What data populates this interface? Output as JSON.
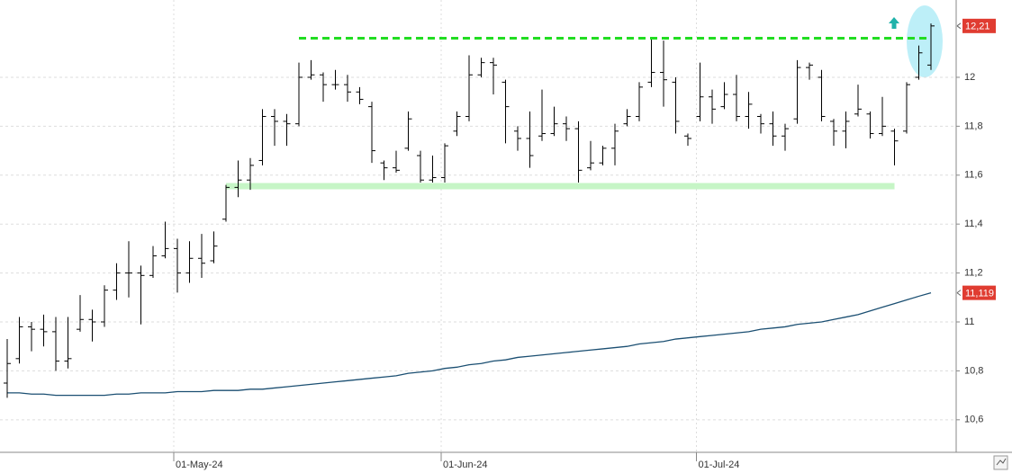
{
  "chart_data": {
    "type": "ohlc",
    "categories": [
      null,
      null,
      null,
      null,
      null,
      null,
      null,
      null,
      null,
      null,
      null,
      null,
      null,
      null,
      "01-May-24",
      null,
      null,
      null,
      null,
      null,
      null,
      null,
      null,
      null,
      null,
      null,
      null,
      null,
      null,
      null,
      null,
      null,
      null,
      null,
      null,
      null,
      "01-Jun-24",
      null,
      null,
      null,
      null,
      null,
      null,
      null,
      null,
      null,
      null,
      null,
      null,
      null,
      null,
      null,
      null,
      null,
      null,
      null,
      null,
      "01-Jul-24",
      null,
      null,
      null,
      null,
      null,
      null,
      null,
      null,
      null,
      null,
      null,
      null,
      null,
      null,
      null,
      null,
      null,
      null,
      null
    ],
    "ohlc": {
      "color": "#000000",
      "open": [
        10.75,
        10.85,
        10.98,
        10.97,
        10.96,
        10.84,
        10.97,
        11.01,
        11.0,
        11.13,
        11.2,
        11.2,
        11.19,
        11.27,
        11.3,
        11.2,
        11.26,
        11.25,
        11.42,
        11.55,
        11.58,
        11.66,
        11.84,
        11.82,
        11.81,
        12.0,
        12.01,
        11.97,
        11.97,
        11.94,
        11.88,
        11.65,
        11.63,
        11.71,
        11.68,
        11.58,
        11.59,
        11.78,
        11.84,
        12.01,
        12.06,
        11.98,
        11.78,
        11.75,
        11.76,
        11.77,
        11.81,
        11.79,
        11.63,
        11.65,
        11.71,
        11.81,
        11.84,
        11.98,
        12.02,
        11.98,
        11.76,
        11.84,
        11.92,
        11.88,
        11.93,
        11.84,
        11.84,
        11.81,
        11.76,
        11.83,
        12.04,
        12.0,
        11.82,
        11.78,
        11.85,
        11.85,
        11.77,
        11.78,
        11.78,
        12.0,
        12.05
      ],
      "high": [
        10.93,
        11.02,
        11.0,
        11.03,
        11.02,
        11.02,
        11.11,
        11.05,
        11.15,
        11.24,
        11.33,
        11.23,
        11.31,
        11.41,
        11.34,
        11.33,
        11.36,
        11.37,
        11.56,
        11.66,
        11.67,
        11.87,
        11.87,
        11.85,
        12.06,
        12.07,
        12.02,
        12.03,
        12.01,
        11.96,
        11.9,
        11.66,
        11.7,
        11.86,
        11.7,
        11.68,
        11.73,
        11.86,
        12.09,
        12.08,
        12.08,
        11.99,
        11.8,
        11.86,
        11.95,
        11.88,
        11.84,
        11.82,
        11.74,
        11.72,
        11.81,
        11.87,
        11.98,
        12.16,
        12.15,
        12.0,
        11.77,
        12.06,
        11.95,
        11.98,
        12.01,
        11.94,
        11.85,
        11.86,
        11.81,
        12.07,
        12.06,
        12.03,
        11.83,
        11.86,
        11.97,
        11.86,
        11.92,
        11.79,
        11.98,
        12.13,
        12.22
      ],
      "low": [
        10.69,
        10.83,
        10.88,
        10.9,
        10.8,
        10.81,
        10.96,
        10.92,
        10.98,
        11.09,
        11.1,
        10.99,
        11.18,
        11.26,
        11.12,
        11.16,
        11.18,
        11.24,
        11.41,
        11.51,
        11.54,
        11.64,
        11.72,
        11.72,
        11.8,
        11.99,
        11.9,
        11.95,
        11.9,
        11.89,
        11.65,
        11.58,
        11.61,
        11.7,
        11.57,
        11.57,
        11.57,
        11.76,
        11.82,
        12.0,
        11.93,
        11.73,
        11.7,
        11.63,
        11.74,
        11.76,
        11.74,
        11.57,
        11.62,
        11.64,
        11.64,
        11.8,
        11.82,
        11.96,
        11.88,
        11.77,
        11.72,
        11.82,
        11.81,
        11.87,
        11.82,
        11.79,
        11.77,
        11.72,
        11.7,
        11.81,
        11.99,
        11.82,
        11.72,
        11.71,
        11.84,
        11.75,
        11.76,
        11.64,
        11.77,
        11.99,
        12.03
      ],
      "close": [
        10.83,
        10.98,
        10.97,
        10.96,
        10.84,
        10.85,
        11.01,
        11.0,
        11.13,
        11.2,
        11.2,
        11.19,
        11.27,
        11.3,
        11.2,
        11.26,
        11.24,
        11.31,
        11.55,
        11.58,
        11.64,
        11.84,
        11.82,
        11.81,
        12.0,
        12.01,
        11.97,
        11.97,
        11.94,
        11.91,
        11.7,
        11.63,
        11.62,
        11.83,
        11.58,
        11.59,
        11.72,
        11.84,
        12.01,
        12.06,
        12.05,
        11.88,
        11.75,
        11.68,
        11.77,
        11.81,
        11.79,
        11.62,
        11.65,
        11.71,
        11.78,
        11.84,
        11.96,
        12.02,
        11.99,
        11.82,
        11.75,
        11.92,
        11.87,
        11.93,
        11.84,
        11.89,
        11.81,
        11.76,
        11.79,
        12.04,
        12.05,
        11.84,
        11.78,
        11.82,
        11.87,
        11.77,
        11.8,
        11.74,
        11.97,
        12.1,
        12.21
      ]
    },
    "ma": {
      "color": "#1b4f72",
      "values": [
        10.71,
        10.71,
        10.705,
        10.705,
        10.7,
        10.7,
        10.7,
        10.7,
        10.7,
        10.705,
        10.705,
        10.71,
        10.71,
        10.71,
        10.715,
        10.715,
        10.715,
        10.72,
        10.72,
        10.72,
        10.725,
        10.725,
        10.73,
        10.735,
        10.74,
        10.745,
        10.75,
        10.755,
        10.76,
        10.765,
        10.77,
        10.775,
        10.78,
        10.79,
        10.795,
        10.8,
        10.81,
        10.815,
        10.825,
        10.83,
        10.84,
        10.845,
        10.855,
        10.86,
        10.865,
        10.87,
        10.875,
        10.88,
        10.885,
        10.89,
        10.895,
        10.9,
        10.91,
        10.915,
        10.92,
        10.93,
        10.935,
        10.94,
        10.945,
        10.95,
        10.955,
        10.96,
        10.97,
        10.975,
        10.98,
        10.99,
        10.995,
        11.0,
        11.01,
        11.02,
        11.03,
        11.045,
        11.06,
        11.075,
        11.09,
        11.105,
        11.119
      ]
    },
    "levels": [
      {
        "value": 12.16,
        "color": "#22dd22",
        "style": "dashed",
        "start": 24,
        "end": 76
      },
      {
        "value": 11.555,
        "color": "#c6f5c6",
        "style": "band",
        "start": 18,
        "end": 73
      }
    ],
    "price_labels": [
      {
        "value": 12.21,
        "label": "12,21",
        "color": "#e03c31"
      },
      {
        "value": 11.119,
        "label": "11,119",
        "color": "#e03c31"
      }
    ],
    "ylim": [
      10.467,
      12.316
    ],
    "yticks": [
      {
        "value": 10.6,
        "label": "10,6"
      },
      {
        "value": 10.8,
        "label": "10,8"
      },
      11,
      {
        "value": 11.2,
        "label": "11,2"
      },
      {
        "value": 11.4,
        "label": "11,4"
      },
      {
        "value": 11.6,
        "label": "11,6"
      },
      {
        "value": 11.8,
        "label": "11,8"
      },
      12
    ],
    "grid": true
  }
}
